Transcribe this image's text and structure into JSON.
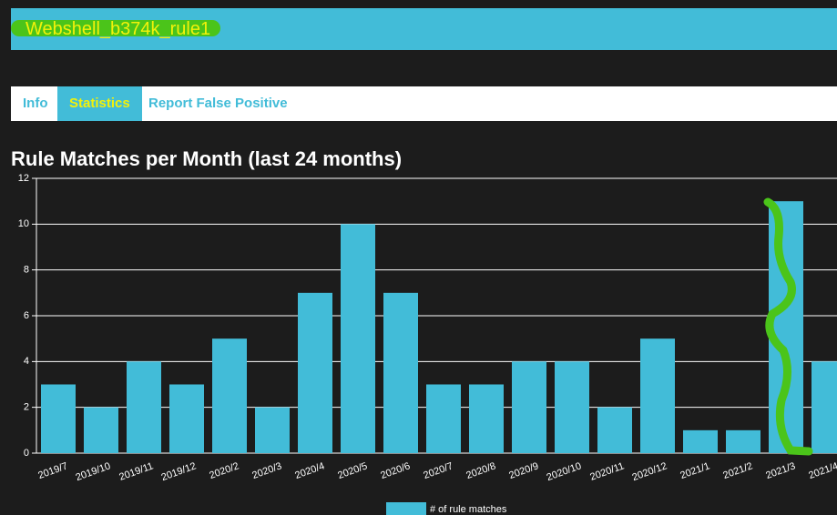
{
  "header": {
    "title": "Webshell_b374k_rule1"
  },
  "tabs": [
    "Info",
    "Statistics",
    "Report False Positive"
  ],
  "active_tab": 1,
  "chart_data": {
    "type": "bar",
    "title": "Rule Matches per Month (last 24 months)",
    "categories": [
      "2019/7",
      "2019/10",
      "2019/11",
      "2019/12",
      "2020/2",
      "2020/3",
      "2020/4",
      "2020/5",
      "2020/6",
      "2020/7",
      "2020/8",
      "2020/9",
      "2020/10",
      "2020/11",
      "2020/12",
      "2021/1",
      "2021/2",
      "2021/3",
      "2021/4"
    ],
    "series": [
      {
        "name": "# of rule matches",
        "color": "#42bcd8",
        "values": [
          3,
          2,
          4,
          3,
          5,
          2,
          7,
          10,
          7,
          3,
          3,
          4,
          4,
          2,
          5,
          1,
          1,
          11,
          4
        ]
      }
    ],
    "ylim": [
      0,
      12
    ],
    "yticks": [
      0,
      2,
      4,
      6,
      8,
      10,
      12
    ],
    "grid": true
  }
}
